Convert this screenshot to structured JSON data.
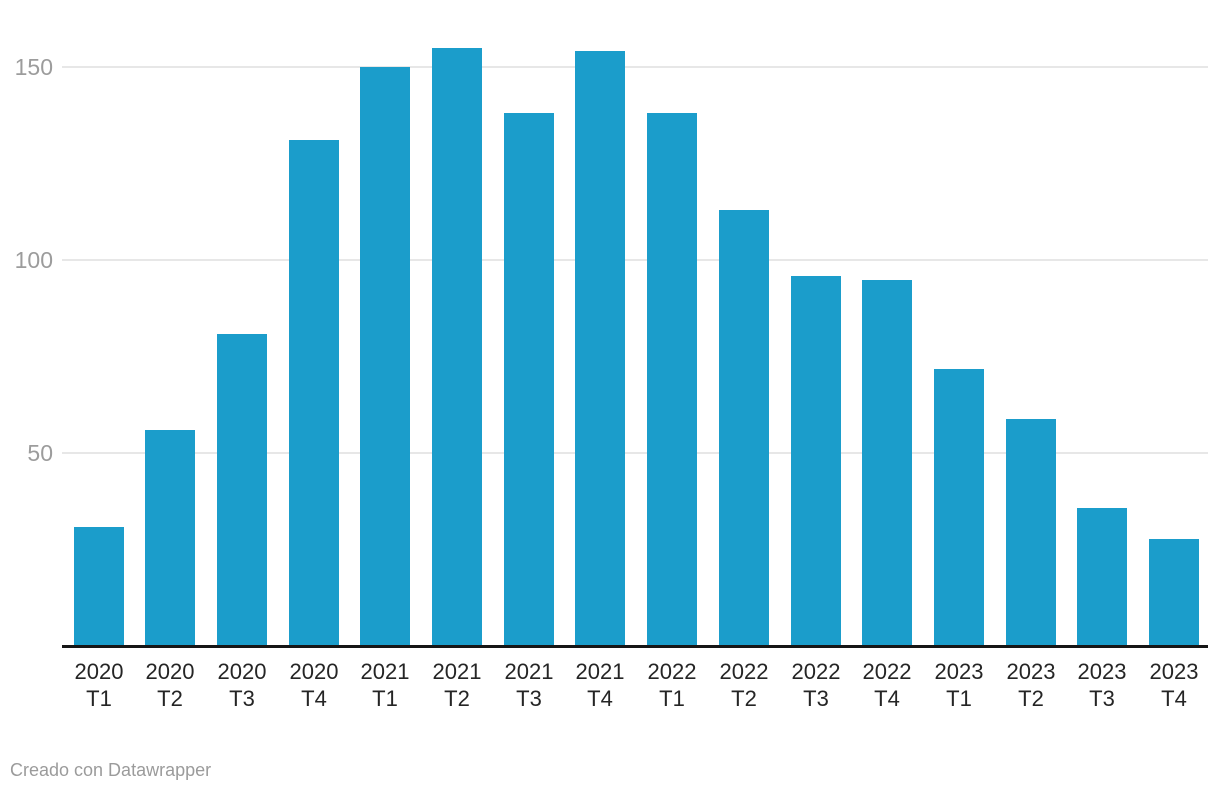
{
  "chart_data": {
    "type": "bar",
    "categories": [
      "2020 T1",
      "2020 T2",
      "2020 T3",
      "2020 T4",
      "2021 T1",
      "2021 T2",
      "2021 T3",
      "2021 T4",
      "2022 T1",
      "2022 T2",
      "2022 T3",
      "2022 T4",
      "2023 T1",
      "2023 T2",
      "2023 T3",
      "2023 T4"
    ],
    "values": [
      31,
      56,
      81,
      131,
      150,
      155,
      138,
      154,
      138,
      113,
      96,
      95,
      72,
      59,
      36,
      28
    ],
    "title": "",
    "xlabel": "",
    "ylabel": "",
    "ylim": [
      0,
      160
    ],
    "yticks": [
      50,
      100,
      150
    ],
    "grid": "horizontal-only",
    "legend": "none"
  },
  "colors": {
    "bar": "#1b9dcb",
    "gridline": "#e7e7e7",
    "axis_line": "#161616",
    "y_tick_text": "#9c9c9c",
    "x_label_text": "#252525",
    "footer_text": "#9b9b9b",
    "background": "#ffffff"
  },
  "footer": {
    "attribution": "Creado con Datawrapper"
  }
}
